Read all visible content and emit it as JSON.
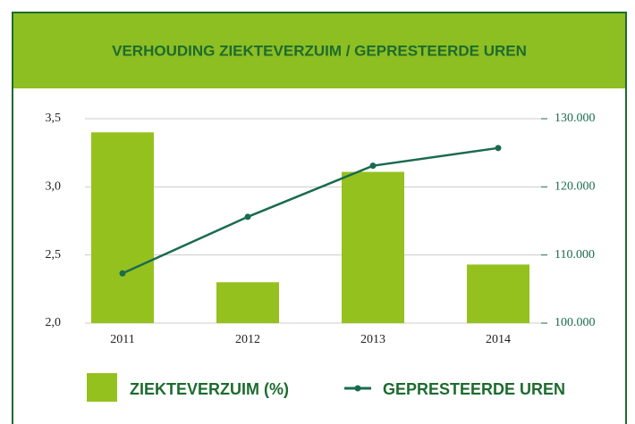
{
  "chart_data": {
    "type": "bar",
    "title": "VERHOUDING ZIEKTEVERZUIM / GEPRESTEERDE UREN",
    "categories": [
      "2011",
      "2012",
      "2013",
      "2014"
    ],
    "series": [
      {
        "name": "ZIEKTEVERZUIM (%)",
        "type": "bar",
        "color": "#95c11f",
        "values": [
          3.4,
          2.3,
          3.11,
          2.43
        ]
      },
      {
        "name": "GEPRESTEERDE UREN",
        "type": "line",
        "axis": "y2",
        "color": "#1a6b4e",
        "values": [
          107300,
          115600,
          123100,
          125700
        ]
      }
    ],
    "ylim": [
      2.0,
      3.5
    ],
    "yticks": [
      {
        "value": 2.0,
        "label": "2,0"
      },
      {
        "value": 2.5,
        "label": "2,5"
      },
      {
        "value": 3.0,
        "label": "3,0"
      },
      {
        "value": 3.5,
        "label": "3,5"
      }
    ],
    "y2lim": [
      100000,
      130000
    ],
    "y2ticks": [
      {
        "value": 100000,
        "label": "100.000"
      },
      {
        "value": 110000,
        "label": "110.000"
      },
      {
        "value": 120000,
        "label": "120.000"
      },
      {
        "value": 130000,
        "label": "130.000"
      }
    ],
    "grid": true
  }
}
